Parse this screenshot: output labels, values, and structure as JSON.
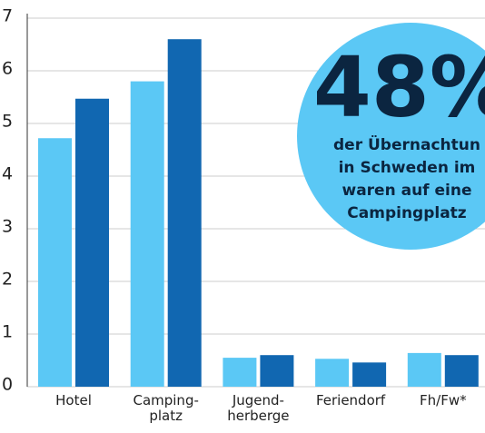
{
  "chart_data": {
    "type": "bar",
    "categories": [
      "Hotel",
      "Camping-\nplatz",
      "Jugend-\nherberge",
      "Feriendorf",
      "Fh/Fw*"
    ],
    "series": [
      {
        "color": "#5bc8f5",
        "values": [
          4.72,
          5.8,
          0.55,
          0.53,
          0.64
        ]
      },
      {
        "color": "#1167b1",
        "values": [
          5.47,
          6.6,
          0.6,
          0.46,
          0.6
        ]
      }
    ],
    "ylim": [
      0,
      7
    ],
    "yticks": [
      0,
      1,
      2,
      3,
      4,
      5,
      6,
      7
    ],
    "grid": true,
    "annotation": {
      "headline": "48%",
      "lines": [
        "der Übernachtun",
        "in Schweden im",
        "waren auf eine",
        "Campingplatz"
      ],
      "color": "#5bc8f5"
    }
  }
}
